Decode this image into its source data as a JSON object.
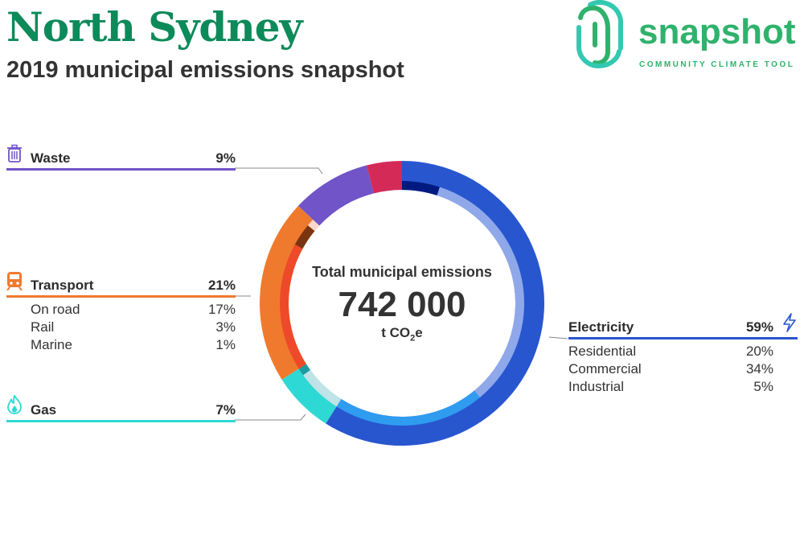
{
  "header": {
    "title": "North Sydney",
    "subtitle": "2019 municipal emissions snapshot"
  },
  "logo": {
    "word": "snapshot",
    "tagline": "COMMUNITY CLIMATE TOOL",
    "icon": "fingerprint-logo-icon",
    "colors": [
      "#2fb26c",
      "#33c9b0"
    ]
  },
  "center": {
    "title": "Total municipal emissions",
    "value": "742 000",
    "unit_prefix": "t CO",
    "unit_sub": "2",
    "unit_suffix": "e"
  },
  "categories": {
    "waste": {
      "label": "Waste",
      "percent": "9%",
      "icon": "waste-bin-icon",
      "color": "#7054c8"
    },
    "transport": {
      "label": "Transport",
      "percent": "21%",
      "icon": "train-icon",
      "color": "#ef7a2e",
      "items": [
        {
          "label": "On road",
          "percent": "17%"
        },
        {
          "label": "Rail",
          "percent": "3%"
        },
        {
          "label": "Marine",
          "percent": "1%"
        }
      ]
    },
    "gas": {
      "label": "Gas",
      "percent": "7%",
      "icon": "flame-icon",
      "color": "#2ed8d4"
    },
    "electricity": {
      "label": "Electricity",
      "percent": "59%",
      "icon": "lightning-icon",
      "color": "#2856cf",
      "items": [
        {
          "label": "Residential",
          "percent": "20%"
        },
        {
          "label": "Commercial",
          "percent": "34%"
        },
        {
          "label": "Industrial",
          "percent": "5%"
        }
      ]
    }
  },
  "chart_data": {
    "type": "pie",
    "title": "Total municipal emissions",
    "total": 742000,
    "unit": "t CO2e",
    "outer_ring": [
      {
        "name": "Electricity",
        "value": 59,
        "color": "#2856cf"
      },
      {
        "name": "Gas",
        "value": 7,
        "color": "#2ed8d4"
      },
      {
        "name": "Transport",
        "value": 21,
        "color": "#ef7a2e"
      },
      {
        "name": "Waste",
        "value": 9,
        "color": "#7054c8"
      },
      {
        "name": "",
        "value": 4,
        "color": "#d42a58"
      }
    ],
    "inner_ring": [
      {
        "name": "Industrial",
        "value": 5,
        "color": "#001a80"
      },
      {
        "name": "Commercial",
        "value": 34,
        "color": "#8fa8ea"
      },
      {
        "name": "Residential",
        "value": 20,
        "color": "#2f9cf0"
      },
      {
        "name": "",
        "value": 6,
        "color": "#bfe3e6"
      },
      {
        "name": "",
        "value": 1,
        "color": "#1f9aa0"
      },
      {
        "name": "On road",
        "value": 17,
        "color": "#ee4a2a"
      },
      {
        "name": "Rail",
        "value": 3,
        "color": "#7a3510"
      },
      {
        "name": "Marine",
        "value": 1,
        "color": "#fbd6cc"
      },
      {
        "name": "",
        "value": 13,
        "color": "none"
      }
    ]
  }
}
